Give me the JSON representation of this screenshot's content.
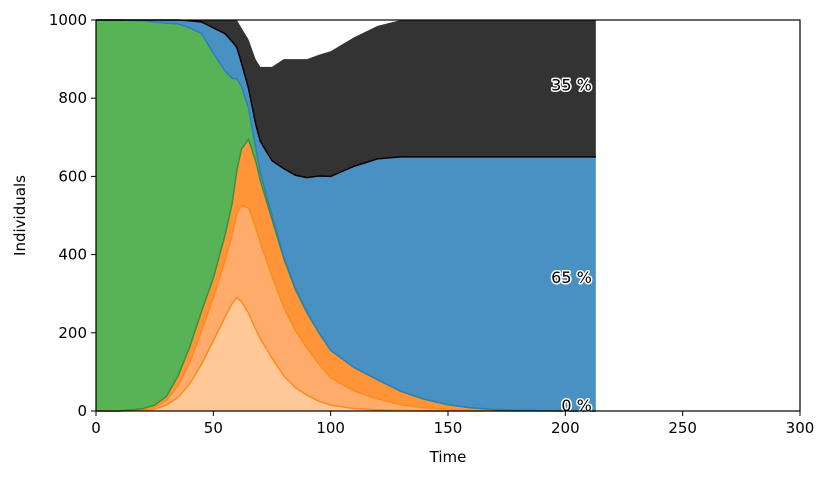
{
  "chart_data": {
    "type": "area",
    "title": "",
    "xlabel": "Time",
    "ylabel": "Individuals",
    "xlim": [
      0,
      300
    ],
    "ylim": [
      0,
      1000
    ],
    "x_ticks": [
      0,
      50,
      100,
      150,
      200,
      250,
      300
    ],
    "y_ticks": [
      0,
      200,
      400,
      600,
      800,
      1000
    ],
    "grid": false,
    "legend": "none",
    "stacking_order": [
      "orange_light",
      "orange_mid",
      "orange_dark",
      "green",
      "blue",
      "black"
    ],
    "x": [
      0,
      10,
      20,
      25,
      30,
      35,
      40,
      45,
      50,
      55,
      58,
      60,
      62,
      65,
      68,
      70,
      75,
      80,
      85,
      90,
      95,
      100,
      110,
      120,
      130,
      140,
      150,
      160,
      170,
      180,
      190,
      200,
      213
    ],
    "series": [
      {
        "key": "orange_light",
        "color": "#ffc896",
        "values": [
          0,
          0,
          2,
          5,
          15,
          35,
          70,
          120,
          180,
          240,
          275,
          290,
          280,
          250,
          210,
          185,
          135,
          90,
          60,
          40,
          25,
          15,
          6,
          3,
          1,
          0,
          0,
          0,
          0,
          0,
          0,
          0,
          0
        ]
      },
      {
        "key": "orange_mid",
        "color": "#ffab6b",
        "values": [
          0,
          0,
          2,
          5,
          12,
          30,
          55,
          85,
          110,
          145,
          175,
          215,
          245,
          270,
          260,
          245,
          210,
          175,
          145,
          120,
          95,
          70,
          45,
          28,
          15,
          8,
          4,
          2,
          1,
          0,
          0,
          0,
          0
        ]
      },
      {
        "key": "orange_dark",
        "color": "#ff9439",
        "values": [
          0,
          0,
          2,
          5,
          10,
          25,
          40,
          50,
          50,
          65,
          80,
          110,
          145,
          175,
          170,
          160,
          145,
          125,
          105,
          90,
          80,
          70,
          60,
          49,
          34,
          22,
          12,
          6,
          3,
          2,
          1,
          0,
          0
        ]
      },
      {
        "key": "green",
        "color": "#57b356",
        "values": [
          1000,
          1000,
          992,
          980,
          955,
          900,
          815,
          710,
          575,
          420,
          320,
          235,
          160,
          80,
          35,
          20,
          10,
          5,
          3,
          2,
          1,
          0,
          0,
          0,
          0,
          0,
          0,
          0,
          0,
          0,
          0,
          0,
          0
        ]
      },
      {
        "key": "blue",
        "color": "#4a91c3",
        "values": [
          0,
          0,
          2,
          5,
          8,
          10,
          18,
          30,
          65,
          95,
          95,
          80,
          60,
          50,
          60,
          80,
          140,
          225,
          290,
          345,
          400,
          445,
          515,
          565,
          600,
          620,
          634,
          642,
          646,
          648,
          649,
          650,
          650
        ]
      },
      {
        "key": "black",
        "color": "#333333",
        "values": [
          0,
          0,
          0,
          0,
          0,
          0,
          2,
          5,
          20,
          35,
          55,
          70,
          90,
          125,
          165,
          190,
          240,
          280,
          297,
          303,
          310,
          320,
          330,
          340,
          350,
          350,
          350,
          350,
          350,
          350,
          350,
          350,
          350
        ]
      }
    ],
    "annotations": [
      {
        "text": "35 %",
        "y": 833
      },
      {
        "text": "65 %",
        "y": 340
      },
      {
        "text": "0 %",
        "y": 13
      }
    ]
  }
}
